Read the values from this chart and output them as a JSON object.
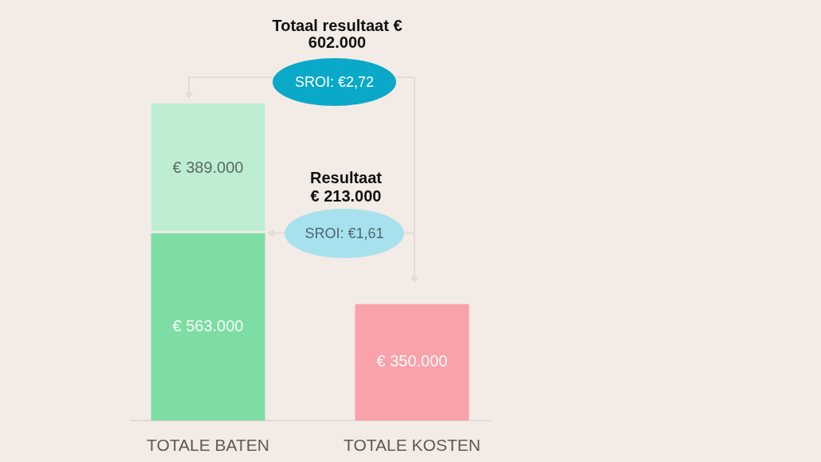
{
  "chart_data": {
    "type": "bar",
    "categories": [
      "TOTALE BATEN",
      "TOTALE KOSTEN"
    ],
    "stacked": true,
    "series": [
      {
        "colors": [
          "#7edda4",
          "#f9a2ac"
        ],
        "values": [
          563000,
          350000
        ],
        "value_labels": [
          "€ 563.000",
          "€ 350.000"
        ]
      },
      {
        "color": "#bdeed2",
        "values": [
          389000,
          null
        ],
        "value_labels": [
          "€ 389.000",
          null
        ]
      }
    ],
    "tick_labels": "x",
    "annotations": [
      "Totaal resultaat € 602.000",
      "SROI: €2,72",
      "Resultaat € 213.000",
      "SROI: €1,61"
    ]
  }
}
